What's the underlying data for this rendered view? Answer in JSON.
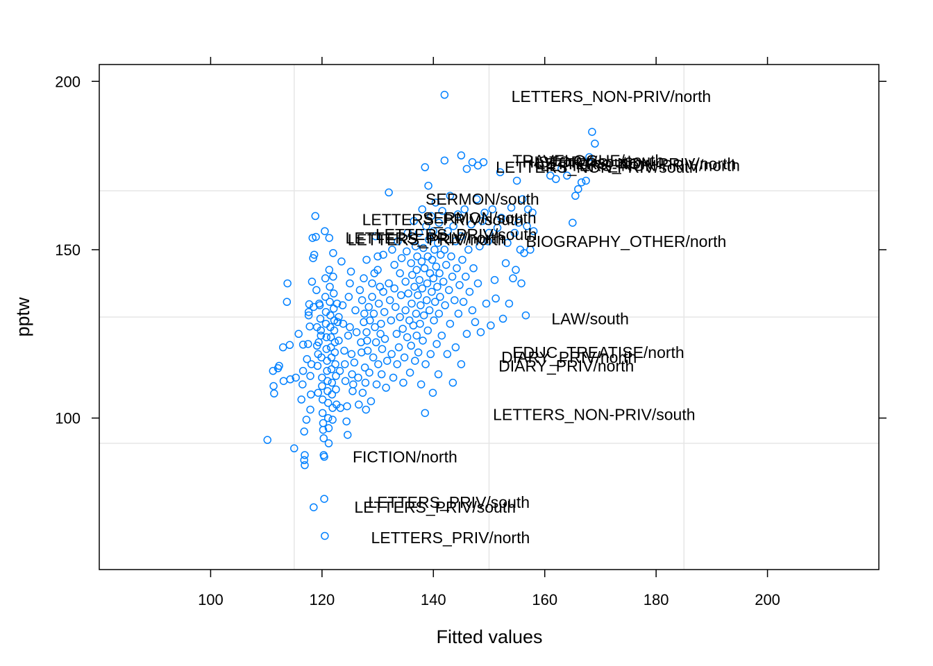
{
  "chart_data": {
    "type": "scatter",
    "xlabel": "Fitted values",
    "ylabel": "pptw",
    "xlim": [
      80,
      220
    ],
    "ylim": [
      55,
      205
    ],
    "x_ticks": [
      100,
      120,
      140,
      160,
      180,
      200
    ],
    "y_ticks": [
      100,
      150,
      200
    ],
    "grid": true,
    "grid_x": [
      115,
      150,
      185
    ],
    "grid_y": [
      92.5,
      130,
      167.5
    ],
    "point_color": "#0080FF",
    "grid_color": "#E6E6E6",
    "points": [
      [
        110.2,
        93.5
      ],
      [
        111.2,
        114
      ],
      [
        111.3,
        109.5
      ],
      [
        111.4,
        107.3
      ],
      [
        112.1,
        114.8
      ],
      [
        112.3,
        115.5
      ],
      [
        113.0,
        121
      ],
      [
        113.1,
        111
      ],
      [
        113.7,
        134.5
      ],
      [
        113.8,
        140
      ],
      [
        114.2,
        121.7
      ],
      [
        114.3,
        111.5
      ],
      [
        115.0,
        91
      ],
      [
        115.3,
        112
      ],
      [
        115.8,
        125
      ],
      [
        116.3,
        105.5
      ],
      [
        116.5,
        110
      ],
      [
        116.6,
        114
      ],
      [
        116.6,
        121.8
      ],
      [
        116.8,
        96
      ],
      [
        116.8,
        87.5
      ],
      [
        116.9,
        86
      ],
      [
        116.9,
        89
      ],
      [
        117.2,
        99.5
      ],
      [
        117.3,
        117.5
      ],
      [
        117.5,
        122
      ],
      [
        117.6,
        130.5
      ],
      [
        117.6,
        131.5
      ],
      [
        117.7,
        133.8
      ],
      [
        117.8,
        127.2
      ],
      [
        117.9,
        112.5
      ],
      [
        117.9,
        102.5
      ],
      [
        118.0,
        107
      ],
      [
        118.1,
        116
      ],
      [
        118.2,
        140.5
      ],
      [
        118.3,
        153.5
      ],
      [
        118.4,
        147.5
      ],
      [
        118.5,
        133
      ],
      [
        118.5,
        73.5
      ],
      [
        118.6,
        148.5
      ],
      [
        118.8,
        160
      ],
      [
        118.9,
        153.8
      ],
      [
        119.0,
        138
      ],
      [
        119.1,
        127
      ],
      [
        119.1,
        121.5
      ],
      [
        119.2,
        115.5
      ],
      [
        119.3,
        119
      ],
      [
        119.3,
        107.5
      ],
      [
        119.4,
        122.5
      ],
      [
        119.5,
        134
      ],
      [
        119.6,
        133.5
      ],
      [
        119.7,
        129.5
      ],
      [
        119.8,
        126
      ],
      [
        119.8,
        124.5
      ],
      [
        119.9,
        118
      ],
      [
        120.0,
        112
      ],
      [
        120.0,
        109.5
      ],
      [
        120.1,
        105.5
      ],
      [
        120.1,
        101.5
      ],
      [
        120.2,
        98.5
      ],
      [
        120.2,
        96.5
      ],
      [
        120.3,
        94
      ],
      [
        120.3,
        89
      ],
      [
        120.4,
        88.5
      ],
      [
        120.4,
        76
      ],
      [
        120.5,
        65
      ],
      [
        120.5,
        155.5
      ],
      [
        120.6,
        141.5
      ],
      [
        120.6,
        136
      ],
      [
        120.7,
        131.5
      ],
      [
        120.7,
        128
      ],
      [
        120.8,
        124
      ],
      [
        120.8,
        120.5
      ],
      [
        120.9,
        117
      ],
      [
        120.9,
        114
      ],
      [
        121.0,
        111
      ],
      [
        121.0,
        108
      ],
      [
        121.1,
        104.5
      ],
      [
        121.1,
        100
      ],
      [
        121.2,
        97
      ],
      [
        121.2,
        92.5
      ],
      [
        121.3,
        153.5
      ],
      [
        121.3,
        144
      ],
      [
        121.4,
        139
      ],
      [
        121.4,
        134.5
      ],
      [
        121.5,
        130.5
      ],
      [
        121.5,
        127
      ],
      [
        121.6,
        124
      ],
      [
        121.6,
        121
      ],
      [
        121.7,
        118
      ],
      [
        121.7,
        114.5
      ],
      [
        121.8,
        110.5
      ],
      [
        121.8,
        107
      ],
      [
        121.9,
        103
      ],
      [
        121.9,
        99.5
      ],
      [
        122.0,
        149
      ],
      [
        122.0,
        142
      ],
      [
        122.1,
        137
      ],
      [
        122.1,
        132.5
      ],
      [
        122.2,
        129
      ],
      [
        122.2,
        126
      ],
      [
        122.3,
        122.5
      ],
      [
        122.3,
        119.5
      ],
      [
        122.4,
        116
      ],
      [
        122.5,
        112.5
      ],
      [
        122.5,
        108.5
      ],
      [
        122.6,
        104
      ],
      [
        122.7,
        134
      ],
      [
        122.8,
        128.5
      ],
      [
        123.0,
        130
      ],
      [
        123.0,
        123
      ],
      [
        123.2,
        114
      ],
      [
        123.3,
        103
      ],
      [
        123.5,
        146.5
      ],
      [
        123.7,
        133.5
      ],
      [
        123.8,
        128
      ],
      [
        124.0,
        120
      ],
      [
        124.1,
        116
      ],
      [
        124.2,
        111
      ],
      [
        124.4,
        99
      ],
      [
        124.5,
        103.5
      ],
      [
        124.6,
        95
      ],
      [
        124.7,
        124.5
      ],
      [
        124.8,
        136
      ],
      [
        125.0,
        140
      ],
      [
        125.0,
        127
      ],
      [
        125.2,
        143.5
      ],
      [
        125.3,
        119
      ],
      [
        125.4,
        113
      ],
      [
        125.5,
        108
      ],
      [
        125.6,
        110
      ],
      [
        125.8,
        116.5
      ],
      [
        126.0,
        132
      ],
      [
        126.2,
        125.5
      ],
      [
        126.5,
        112
      ],
      [
        126.6,
        104
      ],
      [
        126.8,
        138
      ],
      [
        127.0,
        122.5
      ],
      [
        127.1,
        119.5
      ],
      [
        127.2,
        135
      ],
      [
        127.3,
        107.5
      ],
      [
        127.5,
        141.5
      ],
      [
        127.5,
        128.5
      ],
      [
        127.6,
        131
      ],
      [
        127.7,
        115
      ],
      [
        127.8,
        110.5
      ],
      [
        127.9,
        102.5
      ],
      [
        128.0,
        147
      ],
      [
        128.0,
        125.5
      ],
      [
        128.1,
        123
      ],
      [
        128.2,
        120
      ],
      [
        128.4,
        133
      ],
      [
        128.5,
        113.5
      ],
      [
        128.6,
        129
      ],
      [
        128.8,
        105
      ],
      [
        129.0,
        140
      ],
      [
        129.0,
        136
      ],
      [
        129.2,
        118
      ],
      [
        129.3,
        131
      ],
      [
        129.4,
        143
      ],
      [
        129.5,
        127
      ],
      [
        129.6,
        154
      ],
      [
        129.7,
        122.5
      ],
      [
        129.8,
        110
      ],
      [
        130.0,
        144
      ],
      [
        130.0,
        148
      ],
      [
        130.1,
        116
      ],
      [
        130.2,
        134
      ],
      [
        130.4,
        139
      ],
      [
        130.5,
        125
      ],
      [
        130.6,
        128
      ],
      [
        130.7,
        113
      ],
      [
        130.8,
        120.5
      ],
      [
        131.0,
        148.5
      ],
      [
        131.0,
        137.5
      ],
      [
        131.2,
        131.5
      ],
      [
        131.3,
        123.5
      ],
      [
        131.5,
        109
      ],
      [
        131.7,
        117
      ],
      [
        132.0,
        167
      ],
      [
        132.0,
        140
      ],
      [
        132.2,
        135
      ],
      [
        132.4,
        129
      ],
      [
        132.5,
        119
      ],
      [
        132.6,
        150
      ],
      [
        132.8,
        112
      ],
      [
        133.0,
        145.5
      ],
      [
        133.0,
        138.5
      ],
      [
        133.2,
        133
      ],
      [
        133.4,
        125
      ],
      [
        133.5,
        116
      ],
      [
        133.6,
        152.5
      ],
      [
        133.8,
        121
      ],
      [
        134.0,
        143
      ],
      [
        134.0,
        130
      ],
      [
        134.2,
        136.5
      ],
      [
        134.3,
        147.5
      ],
      [
        134.5,
        126.5
      ],
      [
        134.6,
        110.5
      ],
      [
        134.8,
        118
      ],
      [
        135.0,
        140.5
      ],
      [
        135.0,
        132
      ],
      [
        135.2,
        149.5
      ],
      [
        135.3,
        124
      ],
      [
        135.4,
        155
      ],
      [
        135.5,
        137
      ],
      [
        135.7,
        129
      ],
      [
        135.8,
        113.5
      ],
      [
        136.0,
        146
      ],
      [
        136.0,
        121.5
      ],
      [
        136.1,
        134
      ],
      [
        136.2,
        142.5
      ],
      [
        136.4,
        127.5
      ],
      [
        136.5,
        158.5
      ],
      [
        136.6,
        139
      ],
      [
        136.7,
        117
      ],
      [
        136.8,
        151
      ],
      [
        136.9,
        131
      ],
      [
        137.0,
        144
      ],
      [
        137.0,
        124.5
      ],
      [
        137.1,
        148
      ],
      [
        137.2,
        136.5
      ],
      [
        137.3,
        119.5
      ],
      [
        137.4,
        155
      ],
      [
        137.5,
        141
      ],
      [
        137.6,
        128
      ],
      [
        137.7,
        133.5
      ],
      [
        137.8,
        110
      ],
      [
        137.9,
        146.5
      ],
      [
        138.0,
        162
      ],
      [
        138.0,
        138.5
      ],
      [
        138.1,
        123
      ],
      [
        138.2,
        150.5
      ],
      [
        138.3,
        130.5
      ],
      [
        138.4,
        144.5
      ],
      [
        138.5,
        174.5
      ],
      [
        138.5,
        101.5
      ],
      [
        138.6,
        116
      ],
      [
        138.7,
        157
      ],
      [
        138.8,
        135
      ],
      [
        138.9,
        140
      ],
      [
        139.0,
        148
      ],
      [
        139.0,
        126
      ],
      [
        139.1,
        169
      ],
      [
        139.2,
        153
      ],
      [
        139.3,
        132
      ],
      [
        139.4,
        143
      ],
      [
        139.5,
        119
      ],
      [
        139.6,
        160
      ],
      [
        139.7,
        137.5
      ],
      [
        139.8,
        147
      ],
      [
        139.9,
        107.5
      ],
      [
        140.0,
        141.5
      ],
      [
        140.0,
        155.5
      ],
      [
        140.1,
        129
      ],
      [
        140.2,
        150
      ],
      [
        140.3,
        134.5
      ],
      [
        140.4,
        164
      ],
      [
        140.5,
        145
      ],
      [
        140.6,
        122
      ],
      [
        140.7,
        139
      ],
      [
        140.8,
        152
      ],
      [
        140.9,
        113
      ],
      [
        141.0,
        158
      ],
      [
        141.0,
        131
      ],
      [
        141.1,
        143
      ],
      [
        141.2,
        136
      ],
      [
        141.3,
        148.5
      ],
      [
        141.5,
        124.5
      ],
      [
        141.6,
        161.5
      ],
      [
        141.8,
        140.5
      ],
      [
        142.0,
        196
      ],
      [
        142.0,
        176.5
      ],
      [
        142.0,
        150
      ],
      [
        142.1,
        133.5
      ],
      [
        142.3,
        145.5
      ],
      [
        142.5,
        119
      ],
      [
        142.6,
        155.5
      ],
      [
        142.8,
        138
      ],
      [
        143.0,
        166
      ],
      [
        143.0,
        128
      ],
      [
        143.2,
        148
      ],
      [
        143.4,
        142
      ],
      [
        143.5,
        110.5
      ],
      [
        143.6,
        157
      ],
      [
        143.8,
        135
      ],
      [
        144.0,
        152.5
      ],
      [
        144.0,
        121
      ],
      [
        144.2,
        144.5
      ],
      [
        144.4,
        160.5
      ],
      [
        144.5,
        131
      ],
      [
        144.7,
        139.5
      ],
      [
        145.0,
        178
      ],
      [
        145.0,
        154
      ],
      [
        145.0,
        116
      ],
      [
        145.2,
        147
      ],
      [
        145.4,
        134.5
      ],
      [
        145.6,
        162
      ],
      [
        145.8,
        142
      ],
      [
        146.0,
        174
      ],
      [
        146.0,
        125
      ],
      [
        146.3,
        150
      ],
      [
        146.5,
        137.5
      ],
      [
        146.8,
        157.5
      ],
      [
        147.0,
        176
      ],
      [
        147.0,
        132
      ],
      [
        147.2,
        144.5
      ],
      [
        147.5,
        128.5
      ],
      [
        147.8,
        165
      ],
      [
        148.0,
        175
      ],
      [
        148.0,
        140
      ],
      [
        148.3,
        151
      ],
      [
        148.5,
        125.5
      ],
      [
        148.8,
        158.5
      ],
      [
        149.0,
        176
      ],
      [
        149.2,
        161
      ],
      [
        149.5,
        134
      ],
      [
        149.8,
        152.5
      ],
      [
        150.0,
        155
      ],
      [
        150.3,
        127.5
      ],
      [
        150.6,
        162
      ],
      [
        151.0,
        141
      ],
      [
        151.2,
        135.5
      ],
      [
        151.5,
        156.5
      ],
      [
        152.0,
        173
      ],
      [
        152.2,
        159.5
      ],
      [
        152.5,
        129.5
      ],
      [
        153.0,
        146
      ],
      [
        153.3,
        152
      ],
      [
        153.6,
        134
      ],
      [
        154.0,
        162.5
      ],
      [
        154.3,
        141.5
      ],
      [
        154.6,
        155
      ],
      [
        154.8,
        144
      ],
      [
        155.0,
        170.5
      ],
      [
        155.3,
        158
      ],
      [
        155.6,
        150
      ],
      [
        155.8,
        140
      ],
      [
        156.0,
        165
      ],
      [
        156.3,
        149
      ],
      [
        156.6,
        130.5
      ],
      [
        156.8,
        157
      ],
      [
        157.0,
        162
      ],
      [
        157.4,
        150
      ],
      [
        157.8,
        161
      ],
      [
        158.0,
        155.5
      ],
      [
        161.0,
        172
      ],
      [
        162.0,
        171
      ],
      [
        163.0,
        174
      ],
      [
        164.0,
        172
      ],
      [
        165.0,
        158
      ],
      [
        165.5,
        166
      ],
      [
        166.0,
        168
      ],
      [
        166.6,
        170
      ],
      [
        167.4,
        170.5
      ],
      [
        168.0,
        177.5
      ],
      [
        168.5,
        185
      ],
      [
        169.0,
        181.5
      ]
    ],
    "annotations": [
      {
        "text": "LETTERS_NON-PRIV/north",
        "x": 154.0,
        "y": 195.5
      },
      {
        "text": "TRAVELOGUE/south",
        "x": 154.2,
        "y": 176.5
      },
      {
        "text": "HISTORY/south",
        "x": 156.0,
        "y": 176.0
      },
      {
        "text": "LETTERS_NON-PRIV/north",
        "x": 158.5,
        "y": 175.5
      },
      {
        "text": "LETTERS_NON-PRIV/north",
        "x": 159.2,
        "y": 175.0
      },
      {
        "text": "LETTERS_NON-PRIV/south",
        "x": 151.2,
        "y": 174.5
      },
      {
        "text": "SERMON/south",
        "x": 138.6,
        "y": 165.0
      },
      {
        "text": "SERMON/south",
        "x": 138.1,
        "y": 159.5
      },
      {
        "text": "LETTERS_PRIV/south",
        "x": 127.2,
        "y": 159.0
      },
      {
        "text": "LETTERS_PRIV/south",
        "x": 129.6,
        "y": 154.5
      },
      {
        "text": "LETTERS_PRIV/north",
        "x": 124.2,
        "y": 153.5
      },
      {
        "text": "LETTERS_PRIV/north",
        "x": 124.6,
        "y": 153.0
      },
      {
        "text": "BIOGRAPHY_OTHER/north",
        "x": 156.6,
        "y": 152.5
      },
      {
        "text": "LAW/south",
        "x": 161.2,
        "y": 129.5
      },
      {
        "text": "EDUC_TREATISE/north",
        "x": 154.2,
        "y": 119.5
      },
      {
        "text": "DIARY_PRIV/north",
        "x": 152.2,
        "y": 118.0
      },
      {
        "text": "DIARY_PRIV/north",
        "x": 151.7,
        "y": 115.5
      },
      {
        "text": "LETTERS_NON-PRIV/south",
        "x": 150.7,
        "y": 101.0
      },
      {
        "text": "FICTION/north",
        "x": 125.5,
        "y": 88.5
      },
      {
        "text": "LETTERS_PRIV/south",
        "x": 128.3,
        "y": 75.0
      },
      {
        "text": "LETTERS_PRIV/south",
        "x": 125.8,
        "y": 73.5
      },
      {
        "text": "LETTERS_PRIV/north",
        "x": 128.8,
        "y": 64.5
      }
    ]
  }
}
